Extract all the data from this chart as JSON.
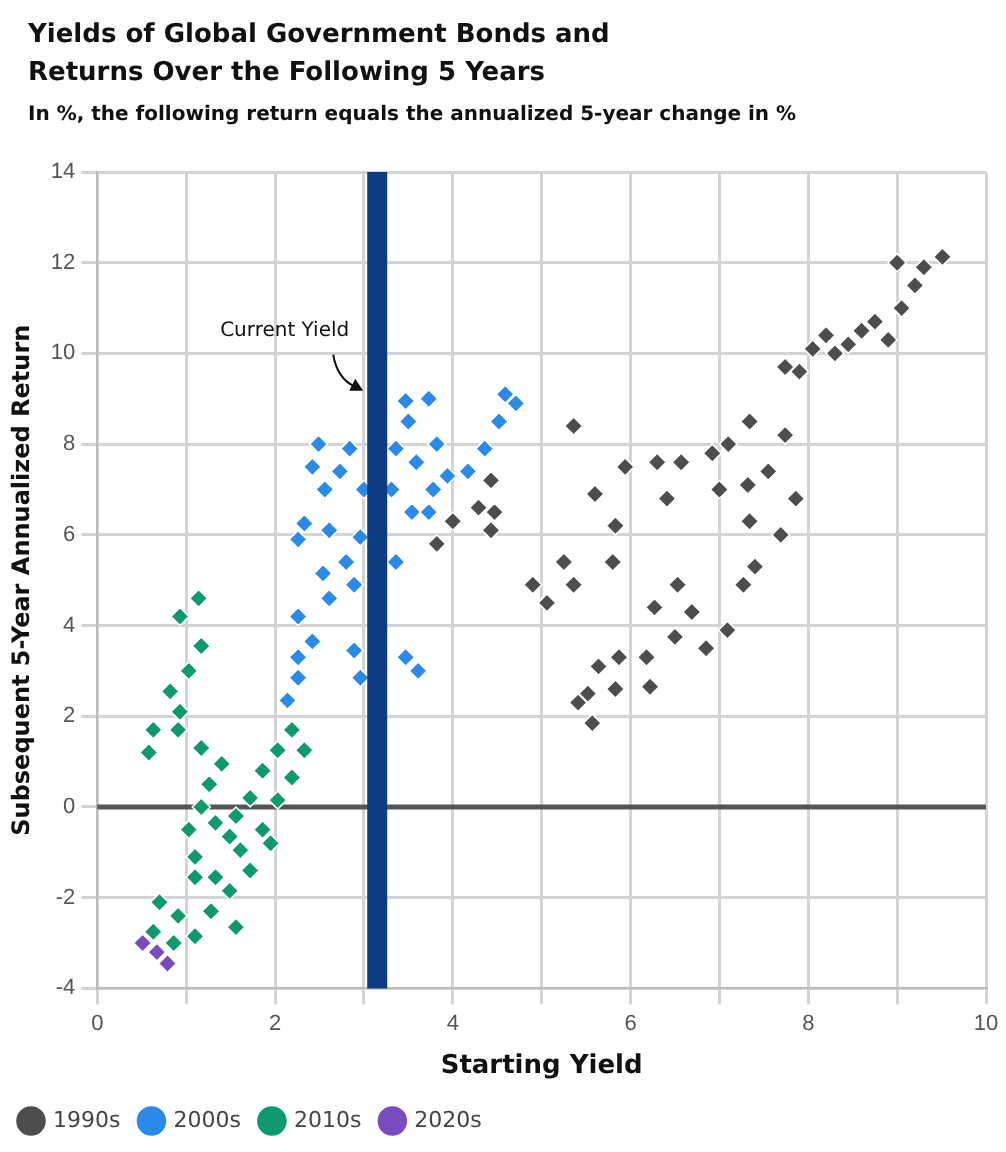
{
  "chart_data": {
    "type": "scatter",
    "title": "Yields of Global Government Bonds and Returns Over the Following 5 Years",
    "subtitle": "In %, the following return equals the annualized 5-year change in %",
    "xlabel": "Starting Yield",
    "ylabel": "Subsequent 5-Year Annualized Return",
    "xlim": [
      0,
      10
    ],
    "ylim": [
      -4,
      14
    ],
    "xticks": [
      0,
      {
        "value": 1,
        "label": null
      },
      2,
      {
        "value": 3,
        "label": null
      },
      4,
      {
        "value": 5,
        "label": null
      },
      6,
      {
        "value": 7,
        "label": null
      },
      8,
      {
        "value": 9,
        "label": null
      },
      10
    ],
    "yticks": [
      -4,
      -2,
      0,
      2,
      4,
      6,
      8,
      10,
      12,
      14
    ],
    "grid": true,
    "legend": "bottom",
    "marker": "diamond",
    "ref_lines": [
      {
        "axis": "x",
        "value": 3.15,
        "label": "Current Yield",
        "color": "#0d3d80"
      },
      {
        "axis": "y",
        "value": 0,
        "label": null,
        "color": "#555555"
      }
    ],
    "series": [
      {
        "name": "1990s",
        "color": "#4d4d4d",
        "x": [
          9.51,
          7.74,
          7.9,
          8.05,
          8.2,
          8.3,
          8.45,
          8.6,
          8.75,
          8.9,
          9.05,
          9.2,
          9.3,
          9.0,
          5.36,
          5.6,
          5.94,
          5.83,
          5.8,
          5.25,
          5.36,
          6.3,
          6.57,
          6.92,
          7.1,
          7.34,
          7.74,
          7.86,
          7.69,
          7.4,
          7.27,
          7.55,
          7.32,
          7.0,
          6.41,
          7.34,
          6.53,
          6.27,
          6.69,
          6.5,
          7.09,
          6.85,
          6.18,
          5.87,
          5.64,
          6.22,
          5.83,
          5.52,
          5.41,
          5.57,
          4.43,
          4.47,
          4.29,
          4.0,
          3.82,
          4.43,
          4.9,
          5.06
        ],
        "values": [
          12.13,
          9.7,
          9.6,
          10.1,
          10.4,
          10.0,
          10.2,
          10.5,
          10.7,
          10.3,
          11.0,
          11.5,
          11.9,
          12.0,
          8.4,
          6.9,
          7.5,
          6.2,
          5.4,
          5.4,
          4.9,
          7.6,
          7.6,
          7.8,
          8.0,
          8.5,
          8.2,
          6.8,
          6.0,
          5.3,
          4.9,
          7.4,
          7.1,
          7.0,
          6.8,
          6.3,
          4.9,
          4.4,
          4.3,
          3.75,
          3.9,
          3.5,
          3.3,
          3.3,
          3.1,
          2.65,
          2.6,
          2.5,
          2.3,
          1.85,
          7.2,
          6.5,
          6.6,
          6.3,
          5.8,
          6.1,
          4.9,
          4.5
        ]
      },
      {
        "name": "2000s",
        "color": "#2b8ae6",
        "x": [
          3.47,
          3.73,
          4.59,
          4.71,
          4.52,
          4.36,
          4.17,
          3.94,
          3.78,
          3.54,
          3.59,
          3.82,
          3.5,
          2.49,
          2.84,
          3.36,
          2.42,
          2.73,
          3.0,
          2.56,
          3.31,
          2.33,
          2.61,
          2.96,
          2.26,
          2.54,
          2.8,
          3.36,
          2.89,
          2.61,
          2.26,
          2.42,
          2.89,
          3.47,
          3.61,
          2.96,
          2.26,
          2.14,
          2.26,
          3.73
        ],
        "values": [
          8.95,
          9.0,
          9.1,
          8.9,
          8.5,
          7.9,
          7.4,
          7.3,
          7.0,
          6.5,
          7.6,
          8.0,
          8.5,
          8.0,
          7.9,
          7.9,
          7.5,
          7.4,
          7.0,
          7.0,
          7.0,
          6.25,
          6.1,
          5.95,
          5.9,
          5.15,
          5.4,
          5.4,
          4.9,
          4.6,
          4.2,
          3.65,
          3.45,
          3.3,
          3.0,
          2.85,
          2.85,
          2.35,
          3.3,
          6.5
        ]
      },
      {
        "name": "2010s",
        "color": "#0e9a6e",
        "x": [
          1.14,
          0.93,
          1.17,
          1.03,
          0.82,
          0.93,
          0.63,
          0.58,
          0.91,
          1.17,
          1.4,
          1.26,
          1.17,
          1.03,
          1.1,
          1.33,
          1.49,
          0.7,
          0.91,
          0.63,
          0.86,
          1.1,
          1.56,
          1.28,
          2.19,
          2.33,
          2.03,
          1.86,
          2.19,
          1.72,
          2.03,
          1.56,
          1.86,
          1.95,
          1.61,
          1.49,
          1.33,
          1.72,
          1.1
        ],
        "values": [
          4.6,
          4.2,
          3.55,
          3.0,
          2.55,
          2.1,
          1.7,
          1.2,
          1.7,
          1.3,
          0.95,
          0.5,
          0.0,
          -0.5,
          -1.1,
          -1.55,
          -1.85,
          -2.1,
          -2.4,
          -2.75,
          -3.0,
          -2.85,
          -2.65,
          -2.3,
          1.7,
          1.25,
          1.25,
          0.8,
          0.65,
          0.2,
          0.15,
          -0.2,
          -0.5,
          -0.8,
          -0.95,
          -0.65,
          -0.35,
          -1.4,
          -1.55
        ]
      },
      {
        "name": "2020s",
        "color": "#7a4bbf",
        "x": [
          0.51,
          0.67,
          0.79
        ],
        "values": [
          -3.0,
          -3.2,
          -3.45
        ]
      }
    ]
  }
}
